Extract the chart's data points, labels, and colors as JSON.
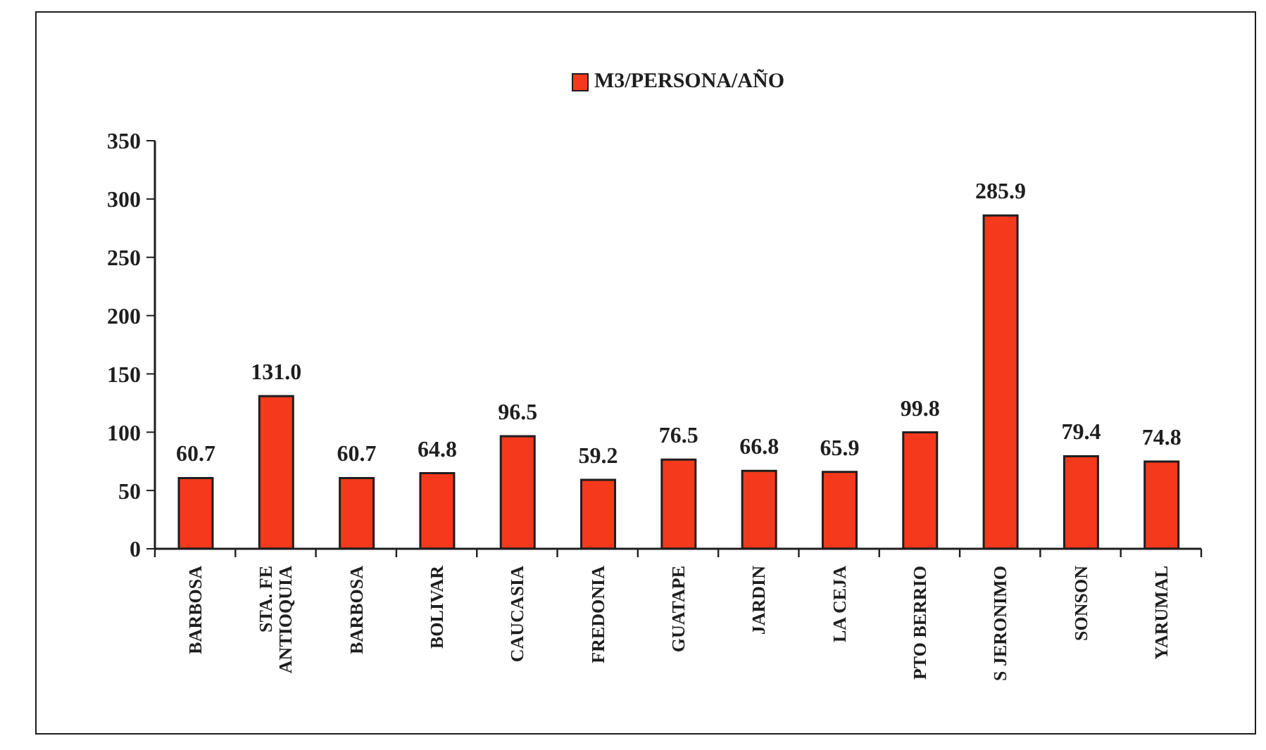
{
  "chart_data": {
    "type": "bar",
    "categories": [
      "BARBOSA",
      "STA. FE ANTIOQUIA",
      "BARBOSA",
      "BOLIVAR",
      "CAUCASIA",
      "FREDONIA",
      "GUATAPE",
      "JARDIN",
      "LA CEJA",
      "PTO BERRIO",
      "S JERONIMO",
      "SONSON",
      "YARUMAL"
    ],
    "series": [
      {
        "name": "M3/PERSONA/AÑO",
        "color": "#f5391c",
        "values": [
          60.7,
          131.0,
          60.7,
          64.8,
          96.5,
          59.2,
          76.5,
          66.8,
          65.9,
          99.8,
          285.9,
          79.4,
          74.8
        ],
        "value_labels": [
          "60.7",
          "131.0",
          "60.7",
          "64.8",
          "96.5",
          "59.2",
          "76.5",
          "66.8",
          "65.9",
          "99.8",
          "285.9",
          "79.4",
          "74.8"
        ]
      }
    ],
    "ylim": [
      0,
      350
    ],
    "yticks": [
      0,
      50,
      100,
      150,
      200,
      250,
      300,
      350
    ],
    "legend": "top"
  }
}
